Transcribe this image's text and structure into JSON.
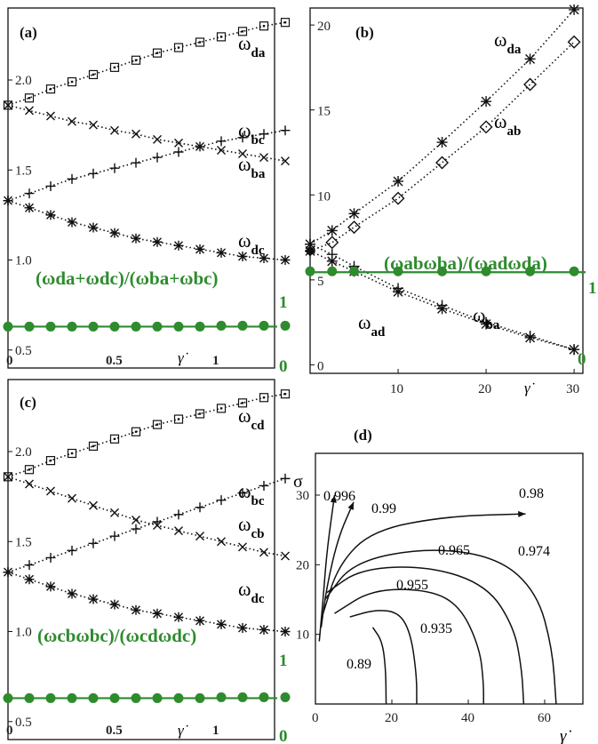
{
  "colors": {
    "green": "#2e8b2e",
    "ink": "#111111"
  },
  "chart_data": [
    {
      "panel": "(a)",
      "type": "scatter",
      "x_min": 0,
      "x_max": 1.25,
      "ylim": [
        0.4,
        2.4
      ],
      "x_tick_labels": [
        "0",
        "0.5",
        "1"
      ],
      "x_ticks": [
        0,
        0.5,
        1
      ],
      "y_tick_labels": [
        "0.5",
        "1.0",
        "1.5",
        "2.0"
      ],
      "y_ticks": [
        0.5,
        1.0,
        1.5,
        2.0
      ],
      "x_axis_symbol": "γ̇",
      "right_axis": {
        "label_bottom": "0",
        "label_ratio": "1"
      },
      "x": [
        0.0,
        0.1,
        0.2,
        0.3,
        0.4,
        0.5,
        0.6,
        0.7,
        0.8,
        0.9,
        1.0,
        1.1,
        1.2,
        1.3
      ],
      "series": [
        {
          "name": "ωda",
          "marker": "box",
          "values": [
            1.86,
            1.9,
            1.95,
            1.99,
            2.03,
            2.07,
            2.11,
            2.15,
            2.18,
            2.21,
            2.24,
            2.27,
            2.3,
            2.32
          ]
        },
        {
          "name": "ωbc",
          "marker": "plus",
          "values": [
            1.33,
            1.37,
            1.41,
            1.45,
            1.48,
            1.51,
            1.54,
            1.57,
            1.6,
            1.63,
            1.66,
            1.68,
            1.7,
            1.72
          ]
        },
        {
          "name": "ωba",
          "marker": "cross",
          "values": [
            1.86,
            1.83,
            1.8,
            1.77,
            1.75,
            1.72,
            1.7,
            1.67,
            1.65,
            1.63,
            1.61,
            1.59,
            1.57,
            1.55
          ]
        },
        {
          "name": "ωdc",
          "marker": "star",
          "values": [
            1.33,
            1.29,
            1.25,
            1.21,
            1.18,
            1.15,
            1.12,
            1.1,
            1.08,
            1.06,
            1.04,
            1.02,
            1.01,
            1.0
          ]
        }
      ],
      "ratio": {
        "label": "(ωda+ωdc)/(ωba+ωbc)",
        "value": 1,
        "x": [
          0.0,
          0.1,
          0.2,
          0.3,
          0.4,
          0.5,
          0.6,
          0.7,
          0.8,
          0.9,
          1.0,
          1.1,
          1.2,
          1.3
        ]
      }
    },
    {
      "panel": "(b)",
      "type": "scatter",
      "x_min": 0,
      "x_max": 31,
      "ylim": [
        -0.5,
        21
      ],
      "x_tick_labels": [
        "10",
        "20",
        "30"
      ],
      "x_ticks": [
        10,
        20,
        30
      ],
      "y_tick_labels": [
        "0",
        "5",
        "10",
        "15",
        "20"
      ],
      "y_ticks": [
        0,
        5,
        10,
        15,
        20
      ],
      "x_axis_symbol": "γ̇",
      "right_axis": {
        "label_bottom": "0",
        "label_ratio": "1"
      },
      "series": [
        {
          "name": "ωda",
          "marker": "star",
          "x": [
            0,
            2.5,
            5,
            10,
            15,
            20,
            25,
            30
          ],
          "values": [
            7.1,
            7.9,
            8.9,
            10.8,
            13.1,
            15.5,
            18.0,
            20.9
          ]
        },
        {
          "name": "ωab",
          "marker": "diamond",
          "x": [
            0,
            2.5,
            5,
            10,
            15,
            20,
            25,
            30
          ],
          "values": [
            6.7,
            7.2,
            8.1,
            9.8,
            11.9,
            14.0,
            16.5,
            19.0
          ]
        },
        {
          "name": "ωad",
          "marker": "star",
          "x": [
            0,
            2.5,
            5,
            10,
            15,
            20,
            25,
            30
          ],
          "values": [
            6.7,
            6.1,
            5.5,
            4.3,
            3.3,
            2.4,
            1.6,
            0.9
          ]
        },
        {
          "name": "ωba",
          "marker": "plus",
          "x": [
            0,
            2.5,
            5,
            10,
            15,
            20,
            25,
            30
          ],
          "values": [
            7.1,
            6.5,
            5.8,
            4.5,
            3.5,
            2.5,
            1.7,
            0.9
          ]
        }
      ],
      "ratio": {
        "label": "(ωabωba)/(ωadωda)",
        "value": 1,
        "x": [
          0,
          2.5,
          5,
          10,
          15,
          20,
          25,
          30
        ]
      }
    },
    {
      "panel": "(c)",
      "type": "scatter",
      "x_min": 0,
      "x_max": 1.25,
      "ylim": [
        0.4,
        2.4
      ],
      "x_tick_labels": [
        "0",
        "0.5",
        "1"
      ],
      "x_ticks": [
        0,
        0.5,
        1
      ],
      "y_tick_labels": [
        "0.5",
        "1.0",
        "1.5",
        "2.0"
      ],
      "y_ticks": [
        0.5,
        1.0,
        1.5,
        2.0
      ],
      "x_axis_symbol": "γ̇",
      "right_axis": {
        "label_bottom": "0",
        "label_ratio": "1"
      },
      "x": [
        0.0,
        0.1,
        0.2,
        0.3,
        0.4,
        0.5,
        0.6,
        0.7,
        0.8,
        0.9,
        1.0,
        1.1,
        1.2,
        1.3
      ],
      "series": [
        {
          "name": "ωcd",
          "marker": "box",
          "values": [
            1.86,
            1.9,
            1.95,
            1.99,
            2.03,
            2.07,
            2.11,
            2.15,
            2.18,
            2.21,
            2.24,
            2.27,
            2.3,
            2.32
          ]
        },
        {
          "name": "ωbc",
          "marker": "plus",
          "values": [
            1.33,
            1.37,
            1.41,
            1.45,
            1.49,
            1.53,
            1.57,
            1.61,
            1.65,
            1.69,
            1.73,
            1.77,
            1.81,
            1.85
          ]
        },
        {
          "name": "ωcb",
          "marker": "cross",
          "values": [
            1.86,
            1.82,
            1.78,
            1.74,
            1.7,
            1.66,
            1.62,
            1.59,
            1.56,
            1.53,
            1.5,
            1.47,
            1.44,
            1.42
          ]
        },
        {
          "name": "ωdc",
          "marker": "star",
          "values": [
            1.33,
            1.29,
            1.25,
            1.21,
            1.18,
            1.15,
            1.12,
            1.1,
            1.08,
            1.06,
            1.04,
            1.02,
            1.01,
            1.0
          ]
        }
      ],
      "ratio": {
        "label": "(ωcbωbc)/(ωcdωdc)",
        "value": 1,
        "x": [
          0.0,
          0.1,
          0.2,
          0.3,
          0.4,
          0.5,
          0.6,
          0.7,
          0.8,
          0.9,
          1.0,
          1.1,
          1.2,
          1.3
        ]
      }
    },
    {
      "panel": "(d)",
      "type": "line",
      "xlim": [
        0,
        70
      ],
      "ylim": [
        0,
        36
      ],
      "x_tick_labels": [
        "0",
        "20",
        "40",
        "60"
      ],
      "x_ticks": [
        0,
        20,
        40,
        60
      ],
      "y_tick_labels": [
        "10",
        "20",
        "30"
      ],
      "y_ticks": [
        10,
        20,
        30
      ],
      "xlabel": "γ̇",
      "ylabel": "σ",
      "contours": [
        {
          "name": "0.996",
          "points": [
            [
              1,
              9
            ],
            [
              2,
              15
            ],
            [
              3,
              22
            ],
            [
              5,
              30
            ]
          ],
          "arrow": true
        },
        {
          "name": "0.99",
          "points": [
            [
              1.5,
              11
            ],
            [
              3,
              17
            ],
            [
              6,
              24
            ],
            [
              10,
              29
            ]
          ],
          "arrow": true
        },
        {
          "name": "0.98",
          "points": [
            [
              2,
              13
            ],
            [
              6,
              20
            ],
            [
              15,
              25
            ],
            [
              35,
              27
            ],
            [
              55,
              27.3
            ]
          ],
          "arrow": true
        },
        {
          "name": "0.974",
          "points": [
            [
              2.5,
              15
            ],
            [
              10,
              20.5
            ],
            [
              30,
              22.5
            ],
            [
              48,
              21
            ],
            [
              58,
              16
            ],
            [
              62,
              8
            ],
            [
              63,
              0
            ]
          ]
        },
        {
          "name": "0.965",
          "points": [
            [
              3,
              16
            ],
            [
              12,
              19.5
            ],
            [
              30,
              19.8
            ],
            [
              45,
              17
            ],
            [
              52,
              11
            ],
            [
              54,
              5
            ],
            [
              54.5,
              0
            ]
          ]
        },
        {
          "name": "0.955",
          "points": [
            [
              5,
              13
            ],
            [
              15,
              16.5
            ],
            [
              30,
              16.4
            ],
            [
              38,
              14
            ],
            [
              43,
              8
            ],
            [
              44,
              3
            ],
            [
              44,
              0
            ]
          ]
        },
        {
          "name": "0.935",
          "points": [
            [
              9,
              12.5
            ],
            [
              16,
              13.6
            ],
            [
              22,
              13.1
            ],
            [
              25,
              10
            ],
            [
              26.5,
              4
            ],
            [
              26.5,
              0
            ]
          ]
        },
        {
          "name": "0.89",
          "points": [
            [
              15,
              11
            ],
            [
              17.5,
              9
            ],
            [
              18.4,
              5
            ],
            [
              18.5,
              0
            ]
          ]
        }
      ]
    }
  ]
}
